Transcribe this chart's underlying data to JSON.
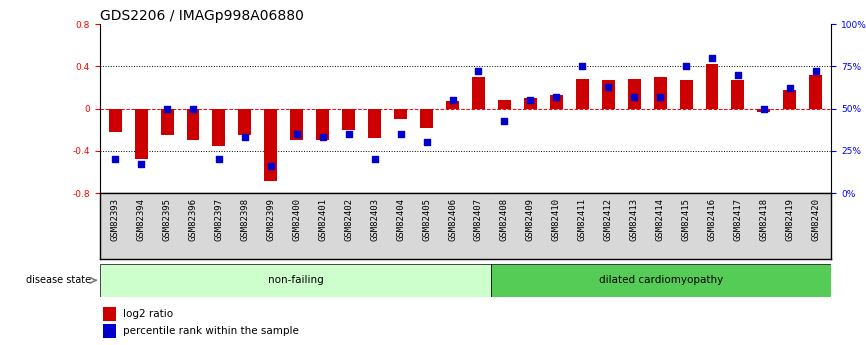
{
  "title": "GDS2206 / IMAGp998A06880",
  "samples": [
    "GSM82393",
    "GSM82394",
    "GSM82395",
    "GSM82396",
    "GSM82397",
    "GSM82398",
    "GSM82399",
    "GSM82400",
    "GSM82401",
    "GSM82402",
    "GSM82403",
    "GSM82404",
    "GSM82405",
    "GSM82406",
    "GSM82407",
    "GSM82408",
    "GSM82409",
    "GSM82410",
    "GSM82411",
    "GSM82412",
    "GSM82413",
    "GSM82414",
    "GSM82415",
    "GSM82416",
    "GSM82417",
    "GSM82418",
    "GSM82419",
    "GSM82420"
  ],
  "log2_ratio": [
    -0.22,
    -0.48,
    -0.25,
    -0.3,
    -0.35,
    -0.25,
    -0.68,
    -0.3,
    -0.3,
    -0.2,
    -0.28,
    -0.1,
    -0.18,
    0.07,
    0.3,
    0.08,
    0.1,
    0.13,
    0.28,
    0.27,
    0.28,
    0.3,
    0.27,
    0.42,
    0.27,
    -0.03,
    0.18,
    0.32
  ],
  "percentile_rank": [
    20,
    17,
    50,
    50,
    20,
    33,
    16,
    35,
    33,
    35,
    20,
    35,
    30,
    55,
    72,
    43,
    55,
    57,
    75,
    63,
    57,
    57,
    75,
    80,
    70,
    50,
    62,
    72
  ],
  "nonfailing_count": 15,
  "ylim": [
    -0.8,
    0.8
  ],
  "yticks_left": [
    -0.8,
    -0.4,
    0.0,
    0.4,
    0.8
  ],
  "yticks_right": [
    0,
    25,
    50,
    75,
    100
  ],
  "bar_color": "#cc0000",
  "dot_color": "#0000cc",
  "nonfailing_color": "#ccffcc",
  "dilated_color": "#55cc55",
  "title_fontsize": 10,
  "tick_fontsize": 6.5,
  "label_fontsize": 7.5
}
